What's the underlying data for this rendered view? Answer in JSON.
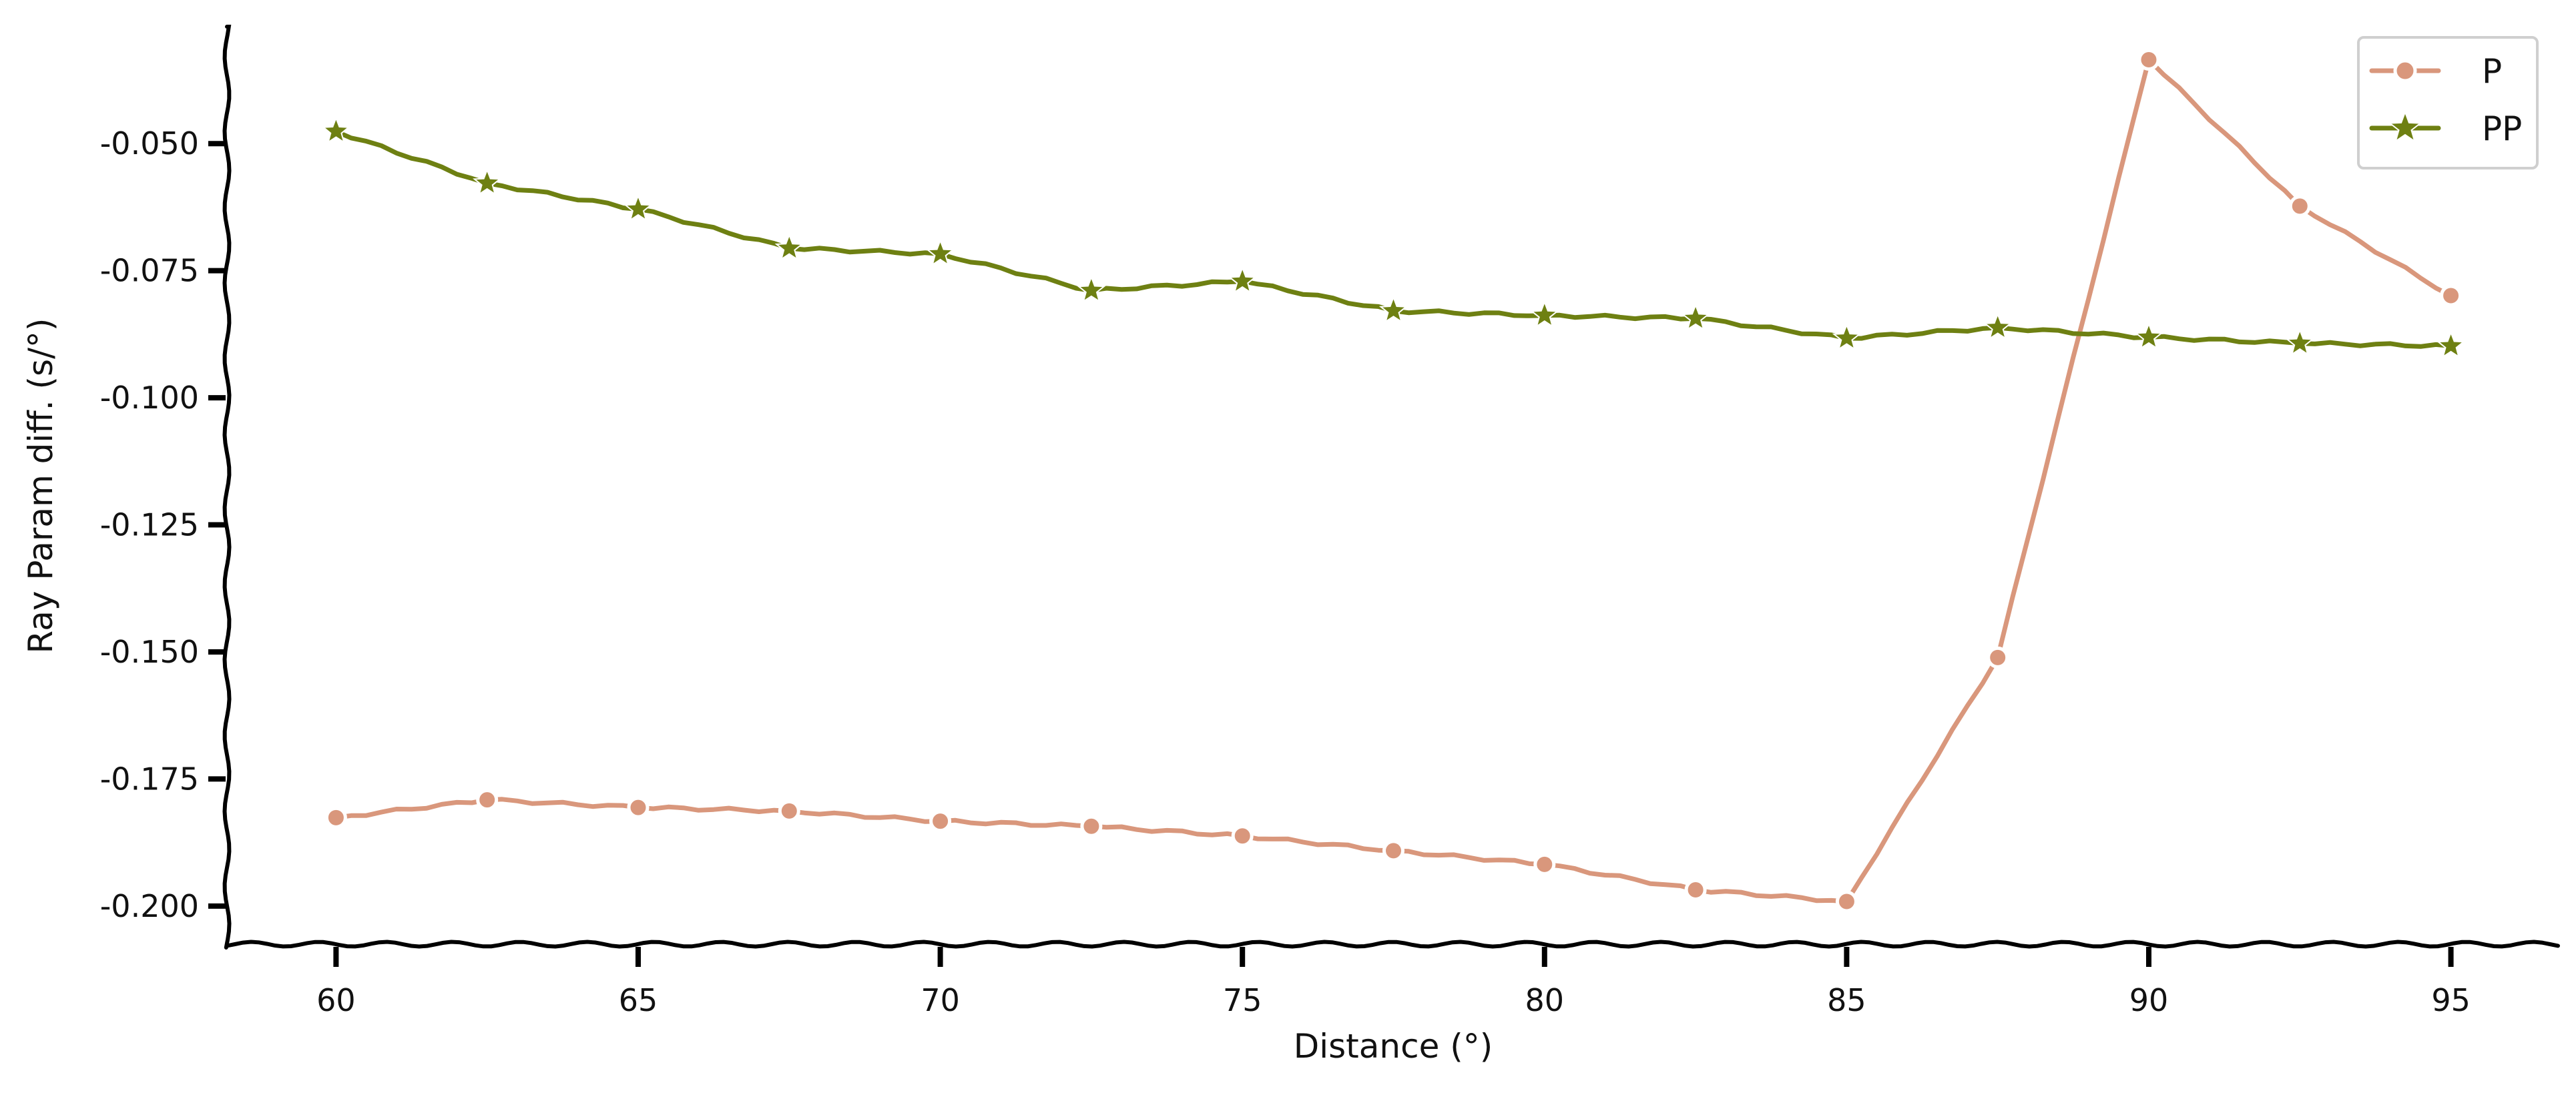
{
  "chart_data": {
    "type": "line",
    "title": "",
    "xlabel": "Distance (°)",
    "ylabel": "Ray Param diff. (s/°)",
    "xlim": [
      58.25,
      96.75
    ],
    "ylim": [
      -0.2075,
      -0.027
    ],
    "xticks": [
      60,
      65,
      70,
      75,
      80,
      85,
      90,
      95
    ],
    "xtick_labels": [
      "60",
      "65",
      "70",
      "75",
      "80",
      "85",
      "90",
      "95"
    ],
    "yticks": [
      -0.05,
      -0.075,
      -0.1,
      -0.125,
      -0.15,
      -0.175,
      -0.2
    ],
    "ytick_labels": [
      "-0.050",
      "-0.075",
      "-0.100",
      "-0.125",
      "-0.150",
      "-0.175",
      "-0.200"
    ],
    "grid": false,
    "legend_position": "top-right",
    "x": [
      60,
      62.5,
      65,
      67.5,
      70,
      72.5,
      75,
      77.5,
      80,
      82.5,
      85,
      87.5,
      90,
      92.5,
      95
    ],
    "series": [
      {
        "name": "P",
        "color": "#D9977C",
        "marker": "circle",
        "values": [
          -0.1826,
          -0.1791,
          -0.1806,
          -0.1813,
          -0.1833,
          -0.1843,
          -0.1862,
          -0.1891,
          -0.1918,
          -0.1968,
          -0.1991,
          -0.1511,
          -0.0335,
          -0.0623,
          -0.0799
        ]
      },
      {
        "name": "PP",
        "color": "#6E8012",
        "marker": "star",
        "values": [
          -0.0476,
          -0.0578,
          -0.0629,
          -0.0706,
          -0.0717,
          -0.0789,
          -0.0771,
          -0.0829,
          -0.0838,
          -0.0844,
          -0.0883,
          -0.0862,
          -0.0881,
          -0.0893,
          -0.0898
        ]
      }
    ]
  }
}
